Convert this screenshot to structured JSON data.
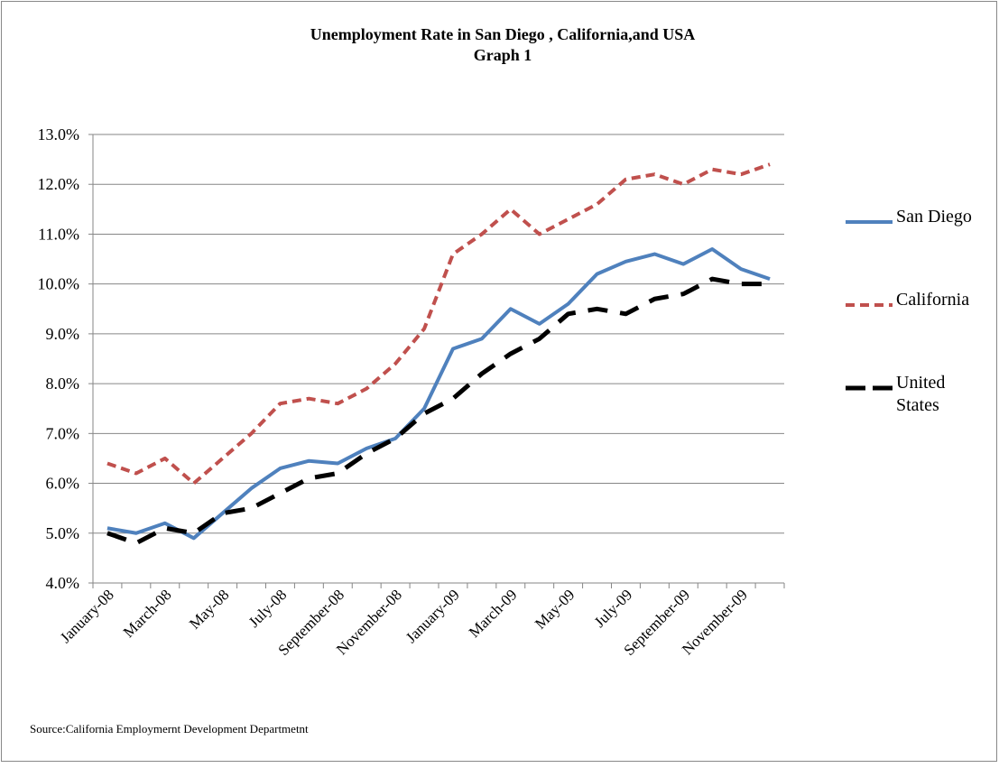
{
  "chart_data": {
    "type": "line",
    "title": "Unemployment Rate in San Diego , California,and USA",
    "subtitle": "Graph 1",
    "source": "Source:California Employmernt Development Departmetnt",
    "categories": [
      "January-08",
      null,
      "March-08",
      null,
      "May-08",
      null,
      "July-08",
      null,
      "September-08",
      null,
      "November-08",
      null,
      "January-09",
      null,
      "March-09",
      null,
      "May-09",
      null,
      "July-09",
      null,
      "September-09",
      null,
      "November-09",
      null
    ],
    "series": [
      {
        "name": "San Diego",
        "color": "#4f81bd",
        "dash": "solid",
        "values": [
          5.1,
          5.0,
          5.2,
          4.9,
          5.4,
          5.9,
          6.3,
          6.45,
          6.4,
          6.7,
          6.9,
          7.5,
          8.7,
          8.9,
          9.5,
          9.2,
          9.6,
          10.2,
          10.45,
          10.6,
          10.4,
          10.7,
          10.3,
          10.1
        ]
      },
      {
        "name": "California",
        "color": "#c0504d",
        "dash": "short",
        "values": [
          6.4,
          6.2,
          6.5,
          6.0,
          6.5,
          7.0,
          7.6,
          7.7,
          7.6,
          7.9,
          8.4,
          9.1,
          10.6,
          11.0,
          11.5,
          11.0,
          11.3,
          11.6,
          12.1,
          12.2,
          12.0,
          12.3,
          12.2,
          12.4
        ]
      },
      {
        "name": "United States",
        "color": "#000000",
        "dash": "long",
        "values": [
          5.0,
          4.8,
          5.1,
          5.0,
          5.4,
          5.5,
          5.8,
          6.1,
          6.2,
          6.6,
          6.9,
          7.4,
          7.7,
          8.2,
          8.6,
          8.9,
          9.4,
          9.5,
          9.4,
          9.7,
          9.8,
          10.1,
          10.0,
          10.0
        ]
      }
    ],
    "ylim": [
      4,
      13
    ],
    "yticks": [
      {
        "value": 4,
        "label": "4.0%"
      },
      {
        "value": 5,
        "label": "5.0%"
      },
      {
        "value": 6,
        "label": "6.0%"
      },
      {
        "value": 7,
        "label": "7.0%"
      },
      {
        "value": 8,
        "label": "8.0%"
      },
      {
        "value": 9,
        "label": "9.0%"
      },
      {
        "value": 10,
        "label": "10.0%"
      },
      {
        "value": 11,
        "label": "11.0%"
      },
      {
        "value": 12,
        "label": "12.0%"
      },
      {
        "value": 13,
        "label": "13.0%"
      }
    ],
    "grid": true,
    "legend": "right"
  }
}
